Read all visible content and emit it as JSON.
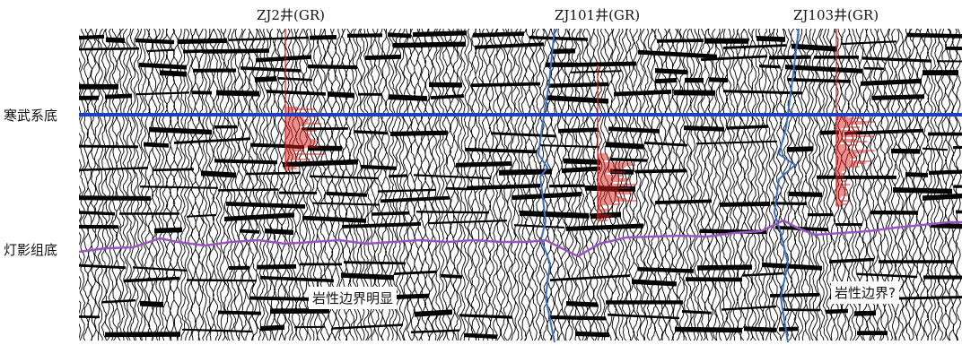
{
  "wells": [
    {
      "label": "ZJ2井(GR)"
    },
    {
      "label": "ZJ101井(GR)"
    },
    {
      "label": "ZJ103井(GR)"
    }
  ],
  "horizons": [
    {
      "label": "寒武系底",
      "color": "#1f3fbf"
    },
    {
      "label": "灯影组底",
      "color": "#9b55c0"
    }
  ],
  "annotations": [
    {
      "text": "岩性边界明显"
    },
    {
      "text": "岩性边界?"
    }
  ],
  "colors": {
    "seismic": "#000000",
    "gr_log": "#e0201c",
    "well_path": "#3a6fc6",
    "cambrian_base": "#1f3fbf",
    "dengying_base": "#9b55c0"
  }
}
